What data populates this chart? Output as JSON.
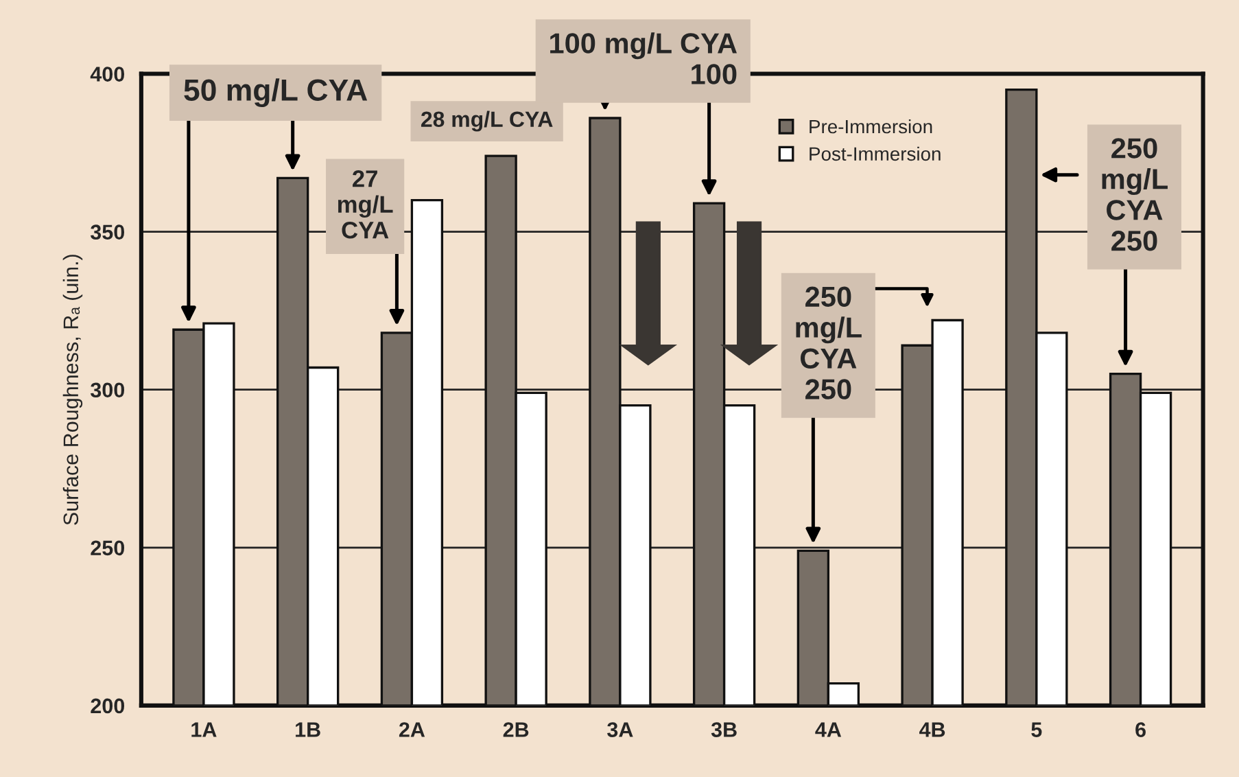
{
  "chart_data": {
    "type": "bar",
    "categories": [
      "1A",
      "1B",
      "2A",
      "2B",
      "3A",
      "3B",
      "4A",
      "4B",
      "5",
      "6"
    ],
    "ylabel": "Surface Roughness, Rₐ (uin.)",
    "ylim": [
      200,
      400
    ],
    "yticks": [
      200,
      250,
      300,
      350,
      400
    ],
    "grid": "y",
    "legend": "top",
    "series": [
      {
        "name": "Pre-Immersion",
        "color": "#786f66",
        "values": [
          319,
          367,
          318,
          374,
          386,
          359,
          249,
          314,
          395,
          305
        ]
      },
      {
        "name": "Post-Immersion",
        "color": "#ffffff",
        "values": [
          321,
          307,
          360,
          299,
          295,
          295,
          207,
          322,
          318,
          299
        ]
      }
    ],
    "annotations": [
      "50 mg/L CYA",
      "27\nmg/L\nCYA",
      "28 mg/L CYA",
      "100 mg/L CYA\n100",
      "250\nmg/L\nCYA\n250",
      {
        "text": "250\nmg/L\nCYA\n250",
        "x": "5",
        "y": 368
      }
    ]
  }
}
